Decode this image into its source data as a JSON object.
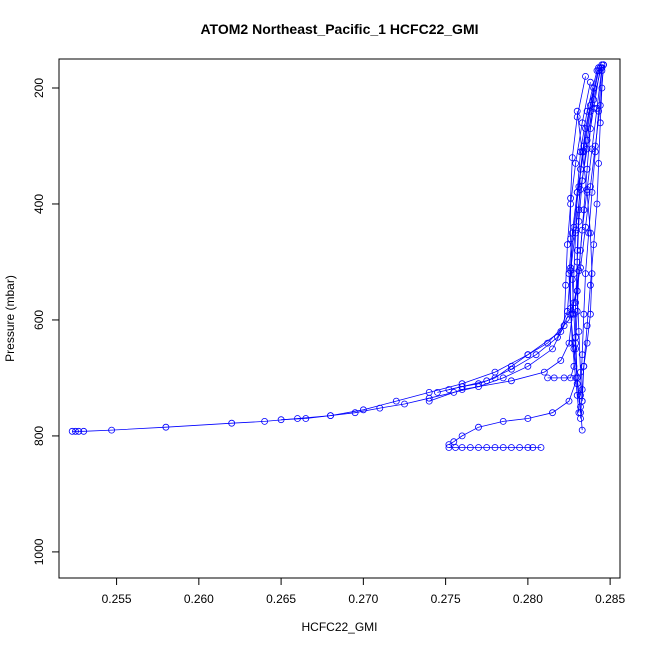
{
  "chart_data": {
    "type": "line",
    "title": "ATOM2 Northeast_Pacific_1 HCFC22_GMI",
    "xlabel": "HCFC22_GMI",
    "ylabel": "Pressure (mbar)",
    "xlim": [
      0.2515,
      0.2856
    ],
    "ylim": [
      1045,
      150
    ],
    "y_reversed": true,
    "x_ticks": [
      0.255,
      0.26,
      0.265,
      0.27,
      0.275,
      0.28,
      0.285
    ],
    "x_tick_labels": [
      "0.255",
      "0.260",
      "0.265",
      "0.270",
      "0.275",
      "0.280",
      "0.285"
    ],
    "y_ticks": [
      200,
      400,
      600,
      800,
      1000
    ],
    "y_tick_labels": [
      "200",
      "400",
      "600",
      "800",
      "1000"
    ],
    "grid": false,
    "legend": "none",
    "colors": {
      "series": "#0000ff",
      "axis": "#000000"
    },
    "series": [
      {
        "x": [
          0.2845,
          0.284,
          0.2836,
          0.2833,
          0.2831,
          0.283,
          0.2829,
          0.2829,
          0.283,
          0.2832,
          0.2833
        ],
        "y": [
          160,
          220,
          290,
          360,
          430,
          500,
          570,
          630,
          700,
          750,
          790
        ]
      },
      {
        "x": [
          0.2843,
          0.2838,
          0.2834,
          0.2831,
          0.2828,
          0.2826,
          0.2826,
          0.2827,
          0.2829,
          0.283,
          0.2831
        ],
        "y": [
          165,
          230,
          300,
          370,
          440,
          510,
          580,
          640,
          700,
          730,
          760
        ]
      },
      {
        "x": [
          0.2846,
          0.2845,
          0.2844,
          0.2843,
          0.2842,
          0.284,
          0.2838,
          0.2836,
          0.2834,
          0.2833
        ],
        "y": [
          160,
          200,
          260,
          330,
          400,
          470,
          540,
          610,
          680,
          740
        ]
      },
      {
        "x": [
          0.2842,
          0.2836,
          0.2832,
          0.283,
          0.2829,
          0.2828,
          0.2827,
          0.2825,
          0.282,
          0.281,
          0.279,
          0.276,
          0.274
        ],
        "y": [
          170,
          240,
          310,
          380,
          450,
          520,
          590,
          640,
          670,
          690,
          705,
          720,
          740
        ]
      },
      {
        "x": [
          0.2835,
          0.283,
          0.2827,
          0.2826,
          0.2826,
          0.2827,
          0.2828,
          0.2829,
          0.283,
          0.2832
        ],
        "y": [
          180,
          250,
          320,
          390,
          460,
          530,
          590,
          650,
          710,
          760
        ]
      },
      {
        "x": [
          0.2846,
          0.2844,
          0.2841,
          0.2838,
          0.2835,
          0.2832,
          0.2828,
          0.282,
          0.28,
          0.278,
          0.276,
          0.274,
          0.272,
          0.27,
          0.268,
          0.266,
          0.264,
          0.262,
          0.258,
          0.2547,
          0.253,
          0.2527,
          0.2525,
          0.2523
        ],
        "y": [
          160,
          230,
          300,
          370,
          440,
          510,
          570,
          620,
          660,
          690,
          710,
          725,
          740,
          755,
          765,
          770,
          775,
          778,
          785,
          790,
          792,
          792,
          792,
          792
        ]
      },
      {
        "x": [
          0.284,
          0.2835,
          0.2832,
          0.2831,
          0.283,
          0.283,
          0.2831,
          0.2832,
          0.2833
        ],
        "y": [
          200,
          270,
          340,
          410,
          480,
          550,
          620,
          690,
          740
        ]
      },
      {
        "x": [
          0.2844,
          0.284,
          0.2836,
          0.2832,
          0.2829,
          0.2826,
          0.2824,
          0.2818,
          0.2805,
          0.279,
          0.2775,
          0.276,
          0.2745
        ],
        "y": [
          165,
          235,
          305,
          375,
          445,
          515,
          585,
          630,
          660,
          685,
          705,
          715,
          725
        ]
      },
      {
        "x": [
          0.2845,
          0.2843,
          0.2841,
          0.2839,
          0.2837,
          0.2835,
          0.2834,
          0.2833,
          0.2832
        ],
        "y": [
          170,
          240,
          310,
          380,
          450,
          520,
          590,
          660,
          730
        ]
      },
      {
        "x": [
          0.2838,
          0.2833,
          0.2829,
          0.2826,
          0.2824,
          0.2823,
          0.2822,
          0.2815,
          0.28,
          0.2785,
          0.277,
          0.2755,
          0.274,
          0.2725,
          0.271,
          0.2695,
          0.268,
          0.2665,
          0.265
        ],
        "y": [
          190,
          260,
          330,
          400,
          470,
          540,
          610,
          650,
          680,
          700,
          715,
          725,
          735,
          745,
          752,
          760,
          765,
          770,
          772
        ]
      },
      {
        "x": [
          0.2843,
          0.2838,
          0.2834,
          0.283,
          0.2827,
          0.2825,
          0.2826,
          0.2828,
          0.283,
          0.2825,
          0.2815,
          0.28,
          0.2785,
          0.277,
          0.276,
          0.2755,
          0.2752
        ],
        "y": [
          170,
          240,
          310,
          380,
          450,
          520,
          590,
          650,
          700,
          740,
          760,
          770,
          775,
          785,
          800,
          810,
          815
        ]
      },
      {
        "x": [
          0.2752,
          0.2756,
          0.276,
          0.2765,
          0.277,
          0.2775,
          0.278,
          0.2785,
          0.279,
          0.2795,
          0.28,
          0.2803,
          0.2808
        ],
        "y": [
          820,
          820,
          820,
          820,
          820,
          820,
          820,
          820,
          820,
          820,
          820,
          820,
          820
        ]
      },
      {
        "x": [
          0.2845,
          0.2842,
          0.2839,
          0.2836,
          0.2833,
          0.2831,
          0.283,
          0.2829,
          0.2828,
          0.2826,
          0.2822,
          0.2816,
          0.2812
        ],
        "y": [
          165,
          235,
          305,
          375,
          445,
          515,
          585,
          640,
          680,
          700,
          700,
          700,
          700
        ]
      },
      {
        "x": [
          0.283,
          0.2833,
          0.2836,
          0.2838,
          0.2839,
          0.2838,
          0.2836,
          0.2834,
          0.2833,
          0.2832
        ],
        "y": [
          240,
          310,
          380,
          450,
          520,
          590,
          640,
          680,
          720,
          770
        ]
      },
      {
        "x": [
          0.284,
          0.2838,
          0.2836,
          0.2834,
          0.2832,
          0.283,
          0.2825,
          0.2812,
          0.28,
          0.279,
          0.278,
          0.277,
          0.276,
          0.2752
        ],
        "y": [
          200,
          270,
          340,
          410,
          480,
          550,
          600,
          640,
          660,
          680,
          700,
          710,
          715,
          720
        ]
      }
    ]
  }
}
